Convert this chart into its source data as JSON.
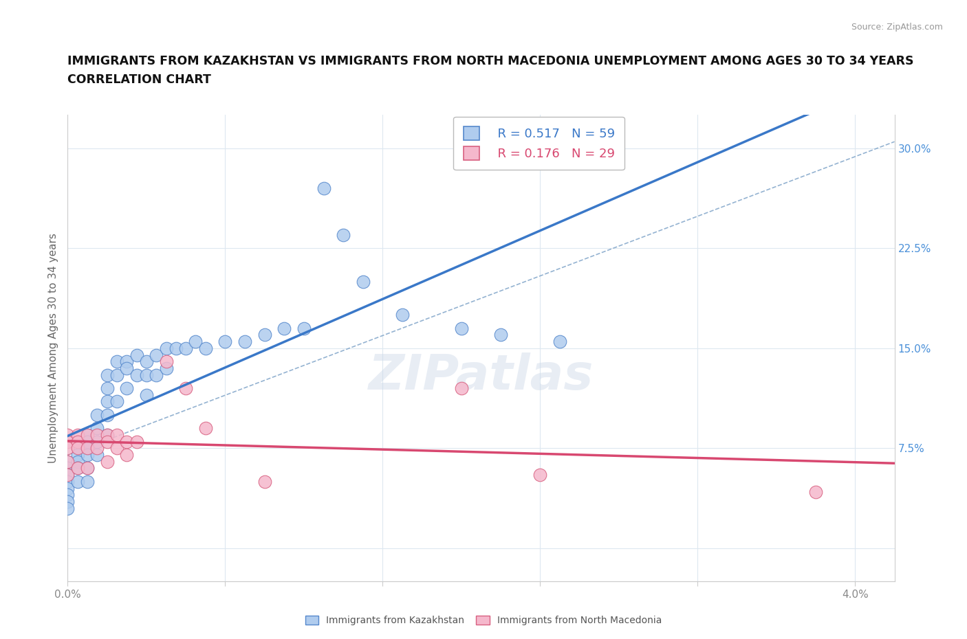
{
  "title_line1": "IMMIGRANTS FROM KAZAKHSTAN VS IMMIGRANTS FROM NORTH MACEDONIA UNEMPLOYMENT AMONG AGES 30 TO 34 YEARS",
  "title_line2": "CORRELATION CHART",
  "source_text": "Source: ZipAtlas.com",
  "ylabel": "Unemployment Among Ages 30 to 34 years",
  "xlim": [
    0.0,
    0.042
  ],
  "ylim": [
    -0.025,
    0.325
  ],
  "yticks": [
    0.0,
    0.075,
    0.15,
    0.225,
    0.3
  ],
  "ytick_labels_right": [
    "",
    "7.5%",
    "15.0%",
    "22.5%",
    "30.0%"
  ],
  "xtick_positions": [
    0.0,
    0.008,
    0.016,
    0.024,
    0.032,
    0.04
  ],
  "xtick_labels": [
    "0.0%",
    "",
    "",
    "",
    "",
    "4.0%"
  ],
  "kaz_color_face": "#b0ccee",
  "kaz_color_edge": "#5588cc",
  "mac_color_face": "#f5b8cc",
  "mac_color_edge": "#d86080",
  "trend_kaz_color": "#3a78c8",
  "trend_mac_color": "#d84870",
  "dashed_color": "#88aacc",
  "R_kaz": 0.517,
  "N_kaz": 59,
  "R_mac": 0.176,
  "N_mac": 29,
  "kaz_x": [
    0.0,
    0.0,
    0.0,
    0.0,
    0.0,
    0.0,
    0.0,
    0.0,
    0.0005,
    0.0005,
    0.0005,
    0.0005,
    0.0005,
    0.001,
    0.001,
    0.001,
    0.001,
    0.001,
    0.001,
    0.0015,
    0.0015,
    0.0015,
    0.0015,
    0.002,
    0.002,
    0.002,
    0.002,
    0.002,
    0.0025,
    0.0025,
    0.0025,
    0.003,
    0.003,
    0.003,
    0.0035,
    0.0035,
    0.004,
    0.004,
    0.004,
    0.0045,
    0.0045,
    0.005,
    0.005,
    0.0055,
    0.006,
    0.0065,
    0.007,
    0.008,
    0.009,
    0.01,
    0.011,
    0.012,
    0.013,
    0.014,
    0.015,
    0.017,
    0.02,
    0.022,
    0.025
  ],
  "kaz_y": [
    0.065,
    0.06,
    0.055,
    0.05,
    0.045,
    0.04,
    0.035,
    0.03,
    0.075,
    0.07,
    0.065,
    0.06,
    0.05,
    0.085,
    0.08,
    0.075,
    0.07,
    0.06,
    0.05,
    0.1,
    0.09,
    0.08,
    0.07,
    0.13,
    0.12,
    0.11,
    0.1,
    0.085,
    0.14,
    0.13,
    0.11,
    0.14,
    0.135,
    0.12,
    0.145,
    0.13,
    0.14,
    0.13,
    0.115,
    0.145,
    0.13,
    0.15,
    0.135,
    0.15,
    0.15,
    0.155,
    0.15,
    0.155,
    0.155,
    0.16,
    0.165,
    0.165,
    0.27,
    0.235,
    0.2,
    0.175,
    0.165,
    0.16,
    0.155
  ],
  "mac_x": [
    0.0,
    0.0,
    0.0,
    0.0,
    0.0,
    0.0005,
    0.0005,
    0.0005,
    0.0005,
    0.001,
    0.001,
    0.001,
    0.0015,
    0.0015,
    0.002,
    0.002,
    0.002,
    0.0025,
    0.0025,
    0.003,
    0.003,
    0.0035,
    0.005,
    0.006,
    0.007,
    0.01,
    0.02,
    0.024,
    0.038
  ],
  "mac_y": [
    0.085,
    0.08,
    0.075,
    0.065,
    0.055,
    0.085,
    0.08,
    0.075,
    0.06,
    0.085,
    0.075,
    0.06,
    0.085,
    0.075,
    0.085,
    0.08,
    0.065,
    0.085,
    0.075,
    0.08,
    0.07,
    0.08,
    0.14,
    0.12,
    0.09,
    0.05,
    0.12,
    0.055,
    0.042
  ],
  "watermark": "ZIPatlas",
  "title_fontsize": 12.5,
  "legend_fontsize": 13,
  "tick_color_right": "#4a90d9",
  "tick_color_bottom": "#888888",
  "ylabel_color": "#666666",
  "source_color": "#999999"
}
